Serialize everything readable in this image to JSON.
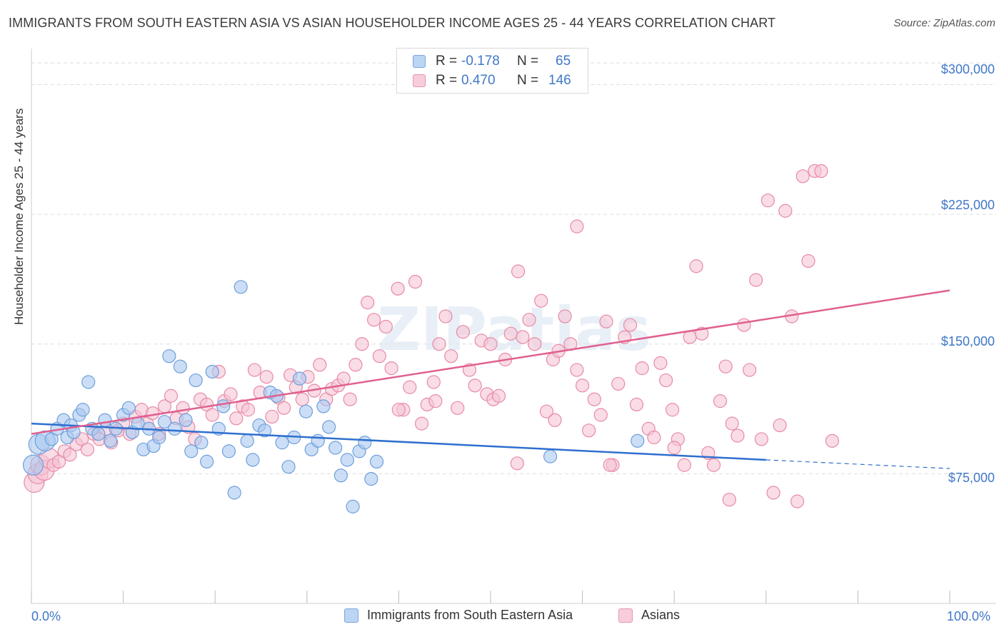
{
  "title": "IMMIGRANTS FROM SOUTH EASTERN ASIA VS ASIAN HOUSEHOLDER INCOME AGES 25 - 44 YEARS CORRELATION CHART",
  "source": "Source: ZipAtlas.com",
  "watermark": "ZIPatlas",
  "legend": {
    "r_label": "R =",
    "n_label": "N =",
    "rows": [
      {
        "r": "-0.178",
        "n": "65",
        "color": "#a9c8f0"
      },
      {
        "r": "0.470",
        "n": "146",
        "color": "#f5b7c9"
      }
    ]
  },
  "colors": {
    "blue_fill": "#a9c8f0",
    "blue_stroke": "#6e9fdc",
    "blue_line": "#2f6fcf",
    "pink_fill": "#f5c4d3",
    "pink_stroke": "#e88aa8",
    "pink_line": "#e06090",
    "axis_text": "#3f78c8",
    "grid": "#dddddd"
  },
  "chart_data": {
    "type": "scatter",
    "title": "IMMIGRANTS FROM SOUTH EASTERN ASIA VS ASIAN HOUSEHOLDER INCOME AGES 25 - 44 YEARS CORRELATION CHART",
    "xlabel": "",
    "ylabel": "Householder Income Ages 25 - 44 years",
    "xlim": [
      0,
      100
    ],
    "ylim": [
      0,
      320000
    ],
    "x_tick_labels": [
      "0.0%",
      "100.0%"
    ],
    "y_ticks": [
      75000,
      150000,
      225000,
      300000
    ],
    "y_tick_labels": [
      "$75,000",
      "$150,000",
      "$225,000",
      "$300,000"
    ],
    "grid": true,
    "legend_position": "bottom-center",
    "series": [
      {
        "name": "Immigrants from South Eastern Asia",
        "r": -0.178,
        "n": 65,
        "trend": {
          "x": [
            0,
            80
          ],
          "y": [
            104000,
            83000
          ],
          "dashed_to_x": 100,
          "dashed_to_y": 78000
        },
        "points": [
          [
            0.2,
            80000
          ],
          [
            0.8,
            92000
          ],
          [
            1.5,
            94000
          ],
          [
            2.2,
            95000
          ],
          [
            2.8,
            101000
          ],
          [
            3.5,
            106000
          ],
          [
            3.9,
            96000
          ],
          [
            4.3,
            103000
          ],
          [
            4.6,
            99000
          ],
          [
            5.2,
            109000
          ],
          [
            5.6,
            112000
          ],
          [
            6.2,
            128000
          ],
          [
            6.6,
            101000
          ],
          [
            7.3,
            98000
          ],
          [
            8.0,
            106000
          ],
          [
            8.6,
            94000
          ],
          [
            9.2,
            101000
          ],
          [
            10.0,
            109000
          ],
          [
            10.6,
            113000
          ],
          [
            11.0,
            99000
          ],
          [
            11.6,
            104000
          ],
          [
            12.2,
            89000
          ],
          [
            12.8,
            101000
          ],
          [
            13.3,
            91000
          ],
          [
            13.9,
            96000
          ],
          [
            14.5,
            105000
          ],
          [
            15.0,
            143000
          ],
          [
            15.6,
            101000
          ],
          [
            16.2,
            137000
          ],
          [
            16.8,
            106000
          ],
          [
            17.4,
            88000
          ],
          [
            17.9,
            129000
          ],
          [
            18.5,
            93000
          ],
          [
            19.1,
            82000
          ],
          [
            19.7,
            134000
          ],
          [
            20.4,
            101000
          ],
          [
            20.9,
            114000
          ],
          [
            21.5,
            88000
          ],
          [
            22.1,
            64000
          ],
          [
            22.8,
            183000
          ],
          [
            23.5,
            94000
          ],
          [
            24.1,
            83000
          ],
          [
            24.8,
            103000
          ],
          [
            25.4,
            100000
          ],
          [
            26.0,
            122000
          ],
          [
            26.7,
            120000
          ],
          [
            27.3,
            93000
          ],
          [
            28.0,
            79000
          ],
          [
            28.6,
            96000
          ],
          [
            29.2,
            130000
          ],
          [
            29.9,
            111000
          ],
          [
            30.5,
            89000
          ],
          [
            31.2,
            94000
          ],
          [
            31.8,
            114000
          ],
          [
            32.4,
            102000
          ],
          [
            33.1,
            90000
          ],
          [
            33.7,
            74000
          ],
          [
            34.4,
            83000
          ],
          [
            35.0,
            56000
          ],
          [
            35.7,
            88000
          ],
          [
            36.3,
            93000
          ],
          [
            37.0,
            72000
          ],
          [
            37.6,
            82000
          ],
          [
            56.5,
            85000
          ],
          [
            66.0,
            94000
          ]
        ]
      },
      {
        "name": "Asians",
        "r": 0.47,
        "n": 146,
        "trend": {
          "x": [
            0,
            100
          ],
          "y": [
            98000,
            181000
          ]
        },
        "points": [
          [
            0.3,
            70000
          ],
          [
            0.7,
            75000
          ],
          [
            1.0,
            80000
          ],
          [
            1.4,
            77000
          ],
          [
            1.9,
            84000
          ],
          [
            2.4,
            80000
          ],
          [
            3.0,
            82000
          ],
          [
            3.6,
            88000
          ],
          [
            4.2,
            86000
          ],
          [
            4.9,
            92000
          ],
          [
            5.5,
            95000
          ],
          [
            6.1,
            89000
          ],
          [
            6.8,
            98000
          ],
          [
            7.4,
            95000
          ],
          [
            8.1,
            101000
          ],
          [
            8.7,
            93000
          ],
          [
            9.4,
            100000
          ],
          [
            10.0,
            104000
          ],
          [
            10.7,
            98000
          ],
          [
            11.3,
            108000
          ],
          [
            12.0,
            112000
          ],
          [
            12.6,
            104000
          ],
          [
            13.2,
            110000
          ],
          [
            13.9,
            98000
          ],
          [
            14.5,
            114000
          ],
          [
            15.2,
            120000
          ],
          [
            15.8,
            107000
          ],
          [
            16.5,
            113000
          ],
          [
            17.1,
            102000
          ],
          [
            17.8,
            95000
          ],
          [
            18.4,
            118000
          ],
          [
            19.1,
            115000
          ],
          [
            19.7,
            109000
          ],
          [
            20.4,
            134000
          ],
          [
            21.0,
            117000
          ],
          [
            21.7,
            121000
          ],
          [
            22.3,
            107000
          ],
          [
            23.0,
            114000
          ],
          [
            23.6,
            112000
          ],
          [
            24.3,
            135000
          ],
          [
            24.9,
            122000
          ],
          [
            25.6,
            131000
          ],
          [
            26.2,
            108000
          ],
          [
            26.9,
            119000
          ],
          [
            27.5,
            113000
          ],
          [
            28.2,
            132000
          ],
          [
            28.8,
            125000
          ],
          [
            29.5,
            118000
          ],
          [
            30.1,
            131000
          ],
          [
            30.8,
            123000
          ],
          [
            31.4,
            138000
          ],
          [
            32.1,
            118000
          ],
          [
            32.7,
            124000
          ],
          [
            33.4,
            126000
          ],
          [
            34.0,
            130000
          ],
          [
            34.7,
            118000
          ],
          [
            35.3,
            138000
          ],
          [
            36.0,
            150000
          ],
          [
            36.6,
            174000
          ],
          [
            37.3,
            164000
          ],
          [
            37.9,
            143000
          ],
          [
            38.6,
            160000
          ],
          [
            39.2,
            136000
          ],
          [
            39.9,
            182000
          ],
          [
            40.5,
            112000
          ],
          [
            41.2,
            125000
          ],
          [
            41.8,
            186000
          ],
          [
            42.5,
            104000
          ],
          [
            43.1,
            115000
          ],
          [
            43.8,
            128000
          ],
          [
            44.4,
            150000
          ],
          [
            45.1,
            166000
          ],
          [
            45.7,
            143000
          ],
          [
            46.4,
            113000
          ],
          [
            47.0,
            157000
          ],
          [
            47.7,
            135000
          ],
          [
            48.3,
            126000
          ],
          [
            49.0,
            152000
          ],
          [
            49.6,
            121000
          ],
          [
            50.3,
            118000
          ],
          [
            50.9,
            120000
          ],
          [
            51.6,
            141000
          ],
          [
            52.2,
            156000
          ],
          [
            52.9,
            81000
          ],
          [
            53.5,
            154000
          ],
          [
            54.2,
            164000
          ],
          [
            54.8,
            150000
          ],
          [
            55.5,
            175000
          ],
          [
            56.1,
            111000
          ],
          [
            56.8,
            141000
          ],
          [
            57.4,
            146000
          ],
          [
            58.1,
            166000
          ],
          [
            58.7,
            150000
          ],
          [
            59.4,
            135000
          ],
          [
            60.0,
            126000
          ],
          [
            60.7,
            100000
          ],
          [
            61.3,
            118000
          ],
          [
            62.0,
            109000
          ],
          [
            62.6,
            163000
          ],
          [
            63.3,
            80000
          ],
          [
            63.9,
            127000
          ],
          [
            64.6,
            154000
          ],
          [
            65.2,
            161000
          ],
          [
            65.9,
            115000
          ],
          [
            66.5,
            136000
          ],
          [
            67.2,
            101000
          ],
          [
            67.8,
            96000
          ],
          [
            68.5,
            139000
          ],
          [
            69.1,
            129000
          ],
          [
            69.8,
            112000
          ],
          [
            70.4,
            95000
          ],
          [
            71.1,
            80000
          ],
          [
            71.7,
            154000
          ],
          [
            72.4,
            195000
          ],
          [
            73.0,
            156000
          ],
          [
            73.7,
            87000
          ],
          [
            74.3,
            80000
          ],
          [
            75.0,
            117000
          ],
          [
            75.6,
            137000
          ],
          [
            76.3,
            104000
          ],
          [
            76.9,
            97000
          ],
          [
            77.6,
            161000
          ],
          [
            78.2,
            135000
          ],
          [
            78.9,
            187000
          ],
          [
            79.5,
            95000
          ],
          [
            80.2,
            233000
          ],
          [
            80.8,
            64000
          ],
          [
            81.5,
            103000
          ],
          [
            82.1,
            227000
          ],
          [
            82.8,
            166000
          ],
          [
            83.4,
            59000
          ],
          [
            84.0,
            247000
          ],
          [
            84.6,
            198000
          ],
          [
            85.3,
            250000
          ],
          [
            86.0,
            250000
          ],
          [
            87.2,
            94000
          ],
          [
            40.0,
            112000
          ],
          [
            44.0,
            117000
          ],
          [
            50.0,
            150000
          ],
          [
            57.0,
            106000
          ],
          [
            63.0,
            80000
          ],
          [
            70.0,
            90000
          ],
          [
            76.0,
            60000
          ],
          [
            59.4,
            218000
          ],
          [
            53.0,
            192000
          ]
        ]
      }
    ]
  }
}
